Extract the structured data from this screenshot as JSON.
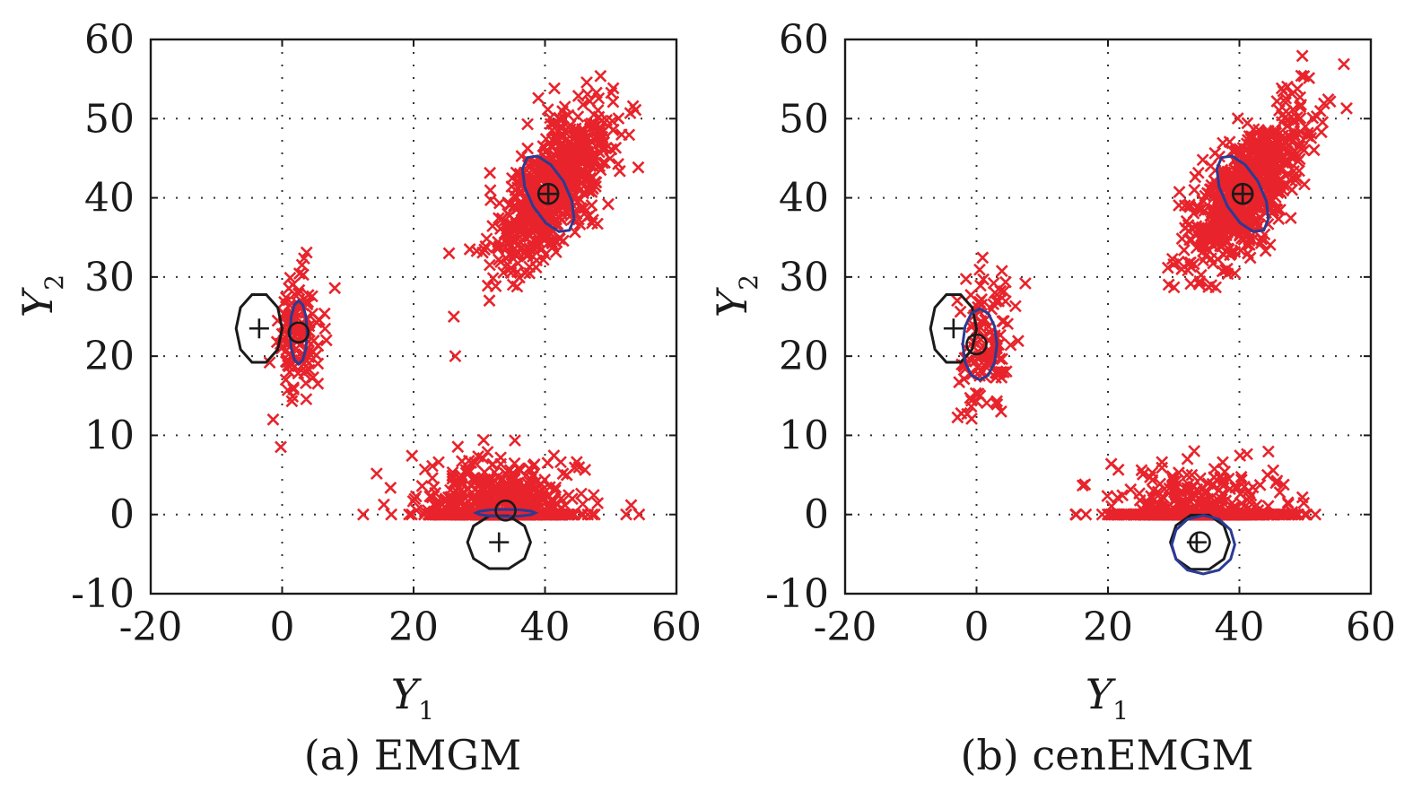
{
  "colors": {
    "points": "#e8232b",
    "mean_plus": "#1a1a1a",
    "mean_circle": "#1a1a1a",
    "true_ellipse": "#1a1a1a",
    "est_ellipse": "#2b3b94",
    "grid": "#333333"
  },
  "chart_data": [
    {
      "type": "scatter",
      "caption": "(a) EMGM",
      "xlabel": "Y",
      "xlabel_sub": "1",
      "ylabel": "Y",
      "ylabel_sub": "2",
      "xlim": [
        -20,
        60
      ],
      "ylim": [
        -10,
        60
      ],
      "xticks": [
        "-20",
        "0",
        "20",
        "40",
        "60"
      ],
      "yticks": [
        "-10",
        "0",
        "10",
        "20",
        "30",
        "40",
        "50",
        "60"
      ],
      "grid": "dotted",
      "clusters": [
        {
          "name": "upper-right",
          "center": [
            41,
            41
          ],
          "spread": [
            4.5,
            5
          ],
          "corr": 0.7,
          "n": 700,
          "censor_below_zero": false
        },
        {
          "name": "left",
          "center": [
            2.5,
            23
          ],
          "spread": [
            1.8,
            4
          ],
          "corr": 0.1,
          "n": 130,
          "censor_below_zero": false
        },
        {
          "name": "bottom",
          "center": [
            33,
            0
          ],
          "spread": [
            6,
            3.2
          ],
          "corr": 0,
          "n": 700,
          "censor_below_zero": true
        }
      ],
      "true_means": [
        [
          40.5,
          40.5
        ],
        [
          -3.5,
          23.5
        ],
        [
          33,
          -3.5
        ]
      ],
      "estimated_means": [
        [
          40.5,
          40.5
        ],
        [
          2.5,
          23
        ],
        [
          34,
          0.5
        ]
      ],
      "true_ellipses": [
        {
          "center": [
            -3.5,
            23.5
          ],
          "rx": 3.5,
          "ry": 4.5,
          "angle": 0
        },
        {
          "center": [
            33,
            -3.5
          ],
          "rx": 4.8,
          "ry": 3.5,
          "angle": 0
        }
      ],
      "estimated_ellipses": [
        {
          "center": [
            40.5,
            40.5
          ],
          "rx": 2.8,
          "ry": 5.6,
          "angle": 35
        },
        {
          "center": [
            2.5,
            23
          ],
          "rx": 1.3,
          "ry": 4,
          "angle": 0
        },
        {
          "center": [
            34,
            0.2
          ],
          "rx": 4.5,
          "ry": 0.45,
          "angle": 0
        }
      ]
    },
    {
      "type": "scatter",
      "caption": "(b) cenEMGM",
      "xlabel": "Y",
      "xlabel_sub": "1",
      "ylabel": "Y",
      "ylabel_sub": "2",
      "xlim": [
        -20,
        60
      ],
      "ylim": [
        -10,
        60
      ],
      "xticks": [
        "-20",
        "0",
        "20",
        "40",
        "60"
      ],
      "yticks": [
        "-10",
        "0",
        "10",
        "20",
        "30",
        "40",
        "50",
        "60"
      ],
      "grid": "dotted",
      "clusters": [
        {
          "name": "upper-right",
          "center": [
            41,
            41
          ],
          "spread": [
            4.5,
            5
          ],
          "corr": 0.7,
          "n": 700,
          "censor_below_zero": false
        },
        {
          "name": "left",
          "center": [
            1.5,
            22
          ],
          "spread": [
            2,
            4.2
          ],
          "corr": 0.1,
          "n": 120,
          "censor_below_zero": false
        },
        {
          "name": "bottom",
          "center": [
            33.5,
            -2
          ],
          "spread": [
            6,
            3.6
          ],
          "corr": 0,
          "n": 700,
          "censor_below_zero": true
        }
      ],
      "true_means": [
        [
          40.5,
          40.5
        ],
        [
          -3.5,
          23.5
        ],
        [
          33.5,
          -3.5
        ]
      ],
      "estimated_means": [
        [
          40.5,
          40.5
        ],
        [
          0,
          21.5
        ],
        [
          34,
          -3.5
        ]
      ],
      "true_ellipses": [
        {
          "center": [
            -3.5,
            23.5
          ],
          "rx": 3.5,
          "ry": 4.5,
          "angle": 0
        },
        {
          "center": [
            34,
            -3.5
          ],
          "rx": 4.5,
          "ry": 3.6,
          "angle": 0
        }
      ],
      "estimated_ellipses": [
        {
          "center": [
            40.5,
            40.5
          ],
          "rx": 2.8,
          "ry": 5.6,
          "angle": 35
        },
        {
          "center": [
            0.5,
            21.5
          ],
          "rx": 2.6,
          "ry": 4.5,
          "angle": 0
        },
        {
          "center": [
            34.5,
            -3.8
          ],
          "rx": 4.8,
          "ry": 3.7,
          "angle": 0
        }
      ]
    }
  ]
}
